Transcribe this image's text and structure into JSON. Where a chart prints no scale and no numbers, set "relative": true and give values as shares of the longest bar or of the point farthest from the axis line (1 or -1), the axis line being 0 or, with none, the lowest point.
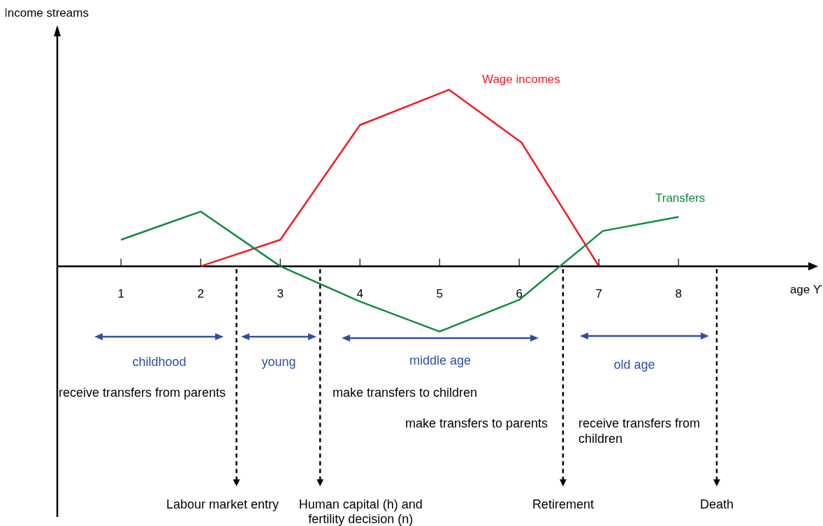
{
  "chart_data": {
    "type": "line",
    "relative": true,
    "legend": false,
    "xlabel": "age ϒ",
    "xlim": [
      0.2,
      9.7
    ],
    "xticks": [
      1,
      2,
      3,
      4,
      5,
      6,
      7,
      8
    ],
    "series": [
      {
        "name": "Wage incomes",
        "color": "#ee1c25",
        "x": [
          2,
          3,
          4,
          5.12,
          6.03,
          7
        ],
        "values": [
          0,
          0.15,
          0.8,
          1,
          0.7,
          0
        ]
      },
      {
        "name": "Transfers",
        "color": "#0e8a3e",
        "x": [
          1,
          2,
          3,
          4,
          5,
          6,
          7.05,
          8
        ],
        "values": [
          0.15,
          0.31,
          0,
          -0.2,
          -0.37,
          -0.19,
          0.2,
          0.28
        ]
      }
    ],
    "ref_lines": [
      {
        "axis": "x",
        "value": 2.45,
        "label": "Labour market entry",
        "color": "#000000",
        "line_style": "dashed"
      },
      {
        "axis": "x",
        "value": 3.5,
        "label": "Human capital (h) and fertility decision (n)",
        "color": "#000000",
        "line_style": "dashed"
      },
      {
        "axis": "x",
        "value": 6.55,
        "label": "Retirement",
        "color": "#000000",
        "line_style": "dashed"
      },
      {
        "axis": "x",
        "value": 8.48,
        "label": "Death",
        "color": "#000000",
        "line_style": "dashed"
      }
    ],
    "annotations": [
      "Income streams",
      "childhood",
      "young",
      "middle age",
      "old age",
      "receive transfers from parents",
      "make transfers to children",
      "make transfers to parents",
      "receive transfers from children"
    ]
  }
}
